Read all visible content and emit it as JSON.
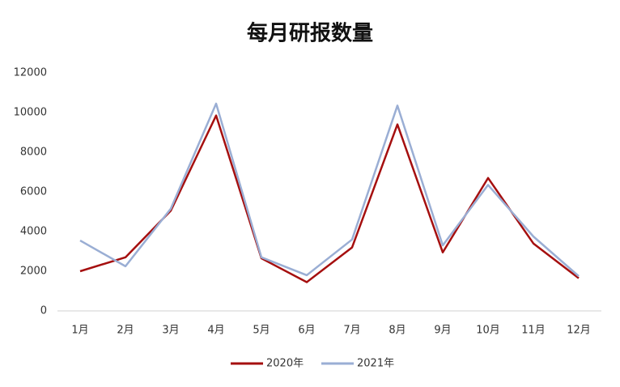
{
  "chart_data": {
    "type": "line",
    "title": "每月研报数量",
    "categories": [
      "1月",
      "2月",
      "3月",
      "4月",
      "5月",
      "6月",
      "7月",
      "8月",
      "9月",
      "10月",
      "11月",
      "12月"
    ],
    "series": [
      {
        "name": "2020年",
        "color": "#a50f0f",
        "values": [
          2000,
          2700,
          5050,
          9850,
          2650,
          1450,
          3200,
          9400,
          2950,
          6700,
          3400,
          1650
        ]
      },
      {
        "name": "2021年",
        "color": "#9aaed4",
        "values": [
          3550,
          2250,
          5150,
          10450,
          2700,
          1800,
          3600,
          10350,
          3300,
          6350,
          3750,
          1750
        ]
      }
    ],
    "ylim": [
      0,
      12000
    ],
    "yticks": [
      0,
      2000,
      4000,
      6000,
      8000,
      10000,
      12000
    ],
    "grid": false,
    "legend": "bottom"
  }
}
